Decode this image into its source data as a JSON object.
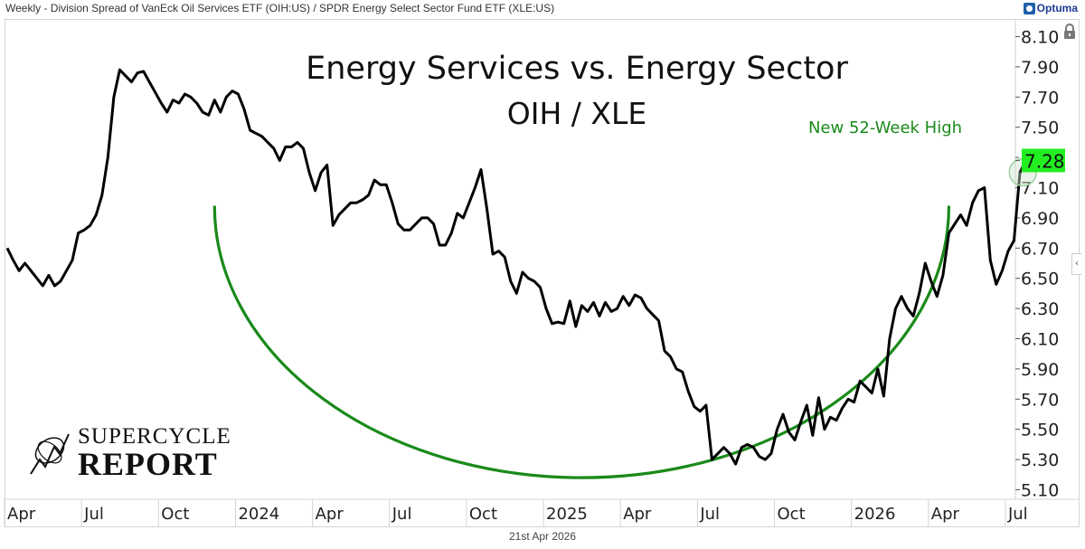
{
  "header": {
    "title": "Weekly - Division Spread of VanEck Oil Services ETF (OIH:US) / SPDR Energy Select Sector Fund ETF (XLE:US)",
    "brand": "Optuma"
  },
  "footer": {
    "date": "21st Apr 2026"
  },
  "logo": {
    "line1": "SUPERCYCLE",
    "line2": "REPORT"
  },
  "colors": {
    "line": "#000000",
    "arc": "#1a8a1a",
    "annotation": "#1a8a1a",
    "last_value_bg": "#22ee22",
    "highlight_circle": "#cfe5cf"
  },
  "chart_data": {
    "type": "line",
    "title": "Energy Services vs. Energy Sector",
    "subtitle": "OIH / XLE",
    "xlabel": "",
    "ylabel": "",
    "frequency": "weekly",
    "ylim": [
      5.05,
      8.17
    ],
    "xlim_weeks": [
      0,
      172
    ],
    "grid": false,
    "yticks": [
      8.1,
      7.9,
      7.7,
      7.5,
      7.3,
      7.1,
      6.9,
      6.7,
      6.5,
      6.3,
      6.1,
      5.9,
      5.7,
      5.5,
      5.3,
      5.1
    ],
    "ytick_labels": [
      "8.10",
      "7.90",
      "7.70",
      "7.50",
      "7.30",
      "7.10",
      "6.90",
      "6.70",
      "6.50",
      "6.30",
      "6.10",
      "5.90",
      "5.70",
      "5.50",
      "5.30",
      "5.10"
    ],
    "xticks": [
      {
        "label": "Apr",
        "week": 0
      },
      {
        "label": "Jul",
        "week": 13
      },
      {
        "label": "Oct",
        "week": 26
      },
      {
        "label": "2024",
        "week": 39
      },
      {
        "label": "Apr",
        "week": 52
      },
      {
        "label": "Jul",
        "week": 65
      },
      {
        "label": "Oct",
        "week": 78
      },
      {
        "label": "2025",
        "week": 91
      },
      {
        "label": "Apr",
        "week": 104
      },
      {
        "label": "Jul",
        "week": 117
      },
      {
        "label": "Oct",
        "week": 130
      },
      {
        "label": "2026",
        "week": 143
      },
      {
        "label": "Apr",
        "week": 156
      },
      {
        "label": "Jul",
        "week": 169
      }
    ],
    "series": [
      {
        "name": "OIH/XLE",
        "values": [
          6.7,
          6.62,
          6.55,
          6.6,
          6.55,
          6.5,
          6.45,
          6.52,
          6.45,
          6.48,
          6.55,
          6.62,
          6.8,
          6.82,
          6.85,
          6.92,
          7.05,
          7.3,
          7.7,
          7.88,
          7.84,
          7.8,
          7.86,
          7.87,
          7.8,
          7.73,
          7.66,
          7.6,
          7.68,
          7.66,
          7.72,
          7.7,
          7.66,
          7.6,
          7.58,
          7.68,
          7.6,
          7.7,
          7.74,
          7.72,
          7.62,
          7.48,
          7.46,
          7.44,
          7.4,
          7.36,
          7.28,
          7.37,
          7.37,
          7.4,
          7.36,
          7.2,
          7.08,
          7.2,
          7.25,
          6.85,
          6.92,
          6.96,
          7.0,
          7.0,
          7.02,
          7.05,
          7.15,
          7.12,
          7.12,
          7.0,
          6.86,
          6.82,
          6.82,
          6.86,
          6.9,
          6.9,
          6.86,
          6.72,
          6.72,
          6.8,
          6.93,
          6.9,
          7.0,
          7.1,
          7.22,
          6.96,
          6.66,
          6.68,
          6.64,
          6.48,
          6.4,
          6.54,
          6.5,
          6.48,
          6.44,
          6.3,
          6.2,
          6.21,
          6.2,
          6.35,
          6.18,
          6.32,
          6.28,
          6.34,
          6.25,
          6.34,
          6.28,
          6.3,
          6.38,
          6.32,
          6.39,
          6.37,
          6.3,
          6.26,
          6.22,
          6.02,
          5.98,
          5.9,
          5.88,
          5.75,
          5.65,
          5.62,
          5.66,
          5.3,
          5.34,
          5.38,
          5.34,
          5.27,
          5.38,
          5.4,
          5.38,
          5.32,
          5.3,
          5.34,
          5.5,
          5.6,
          5.48,
          5.43,
          5.55,
          5.66,
          5.46,
          5.71,
          5.5,
          5.58,
          5.56,
          5.64,
          5.7,
          5.68,
          5.82,
          5.78,
          5.74,
          5.9,
          5.72,
          6.1,
          6.3,
          6.38,
          6.3,
          6.25,
          6.4,
          6.6,
          6.48,
          6.38,
          6.52,
          6.8,
          6.86,
          6.92,
          6.85,
          7.0,
          7.08,
          7.1,
          6.62,
          6.46,
          6.55,
          6.68,
          6.75,
          7.2,
          7.28
        ]
      }
    ],
    "last_value": "7.28",
    "annotations": [
      {
        "text": "New 52-Week High",
        "type": "label",
        "anchor": "last point"
      }
    ],
    "overlays": [
      {
        "type": "arc",
        "description": "rounding-bottom (cup) arc",
        "x_weeks": [
          35,
          159
        ],
        "y_top": 6.98,
        "y_bottom": 5.18
      }
    ]
  }
}
